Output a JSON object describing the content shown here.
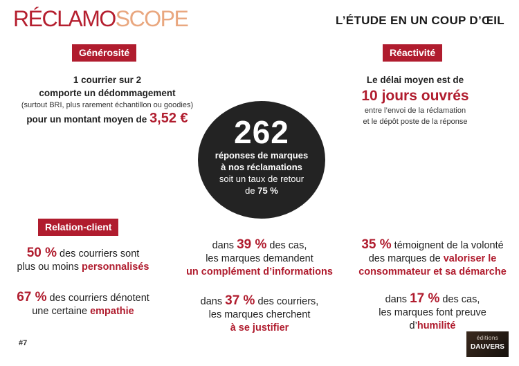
{
  "header": {
    "logo_part1": "RÉCLAMO",
    "logo_part2": "SCOPE",
    "tagline": "L’ÉTUDE EN UN COUP D’ŒIL"
  },
  "generosite": {
    "label": "Générosité",
    "line1": "1 courrier sur 2",
    "line2": "comporte un dédommagement",
    "note": "(surtout BRI, plus rarement échantillon ou goodies)",
    "line3_prefix": "pour un montant moyen de ",
    "amount": "3,52 €"
  },
  "reactivite": {
    "label": "Réactivité",
    "line1": "Le délai moyen est de",
    "highlight": "10 jours ouvrés",
    "line2": "entre l’envoi de la réclamation",
    "line3": "et le dépôt poste de la réponse"
  },
  "circle": {
    "number": "262",
    "line1": "réponses de marques",
    "line2": "à nos réclamations",
    "line3": "soit un taux de retour",
    "line4_prefix": "de ",
    "line4_value": "75 %"
  },
  "relation": {
    "label": "Relation-client",
    "s1_pct": "50 %",
    "s1_text1": " des courriers sont",
    "s1_text2": "plus ou moins ",
    "s1_bold": "personnalisés",
    "s2_pct": "67 %",
    "s2_text1": " des courriers dénotent",
    "s2_text2": "une certaine ",
    "s2_bold": "empathie"
  },
  "middle": {
    "s1_prefix": "dans ",
    "s1_pct": "39 %",
    "s1_suffix": " des cas,",
    "s1_line2": "les marques demandent",
    "s1_bold": "un complément d’informations",
    "s2_prefix": "dans ",
    "s2_pct": "37 %",
    "s2_suffix": " des courriers,",
    "s2_line2": "les marques cherchent",
    "s2_bold": "à se justifier"
  },
  "right": {
    "s1_pct": "35 %",
    "s1_text1": " témoignent de la volonté",
    "s1_text2": "des marques de ",
    "s1_bold1": "valoriser le",
    "s1_bold2": "consommateur et sa démarche",
    "s2_prefix": "dans ",
    "s2_pct": "17 %",
    "s2_suffix": " des cas,",
    "s2_line2": "les marques font preuve",
    "s2_line3_prefix": "d’",
    "s2_bold": "humilité"
  },
  "footer": {
    "page_number": "#7",
    "publisher_small": "éditions",
    "publisher_main": "DAUVERS"
  }
}
